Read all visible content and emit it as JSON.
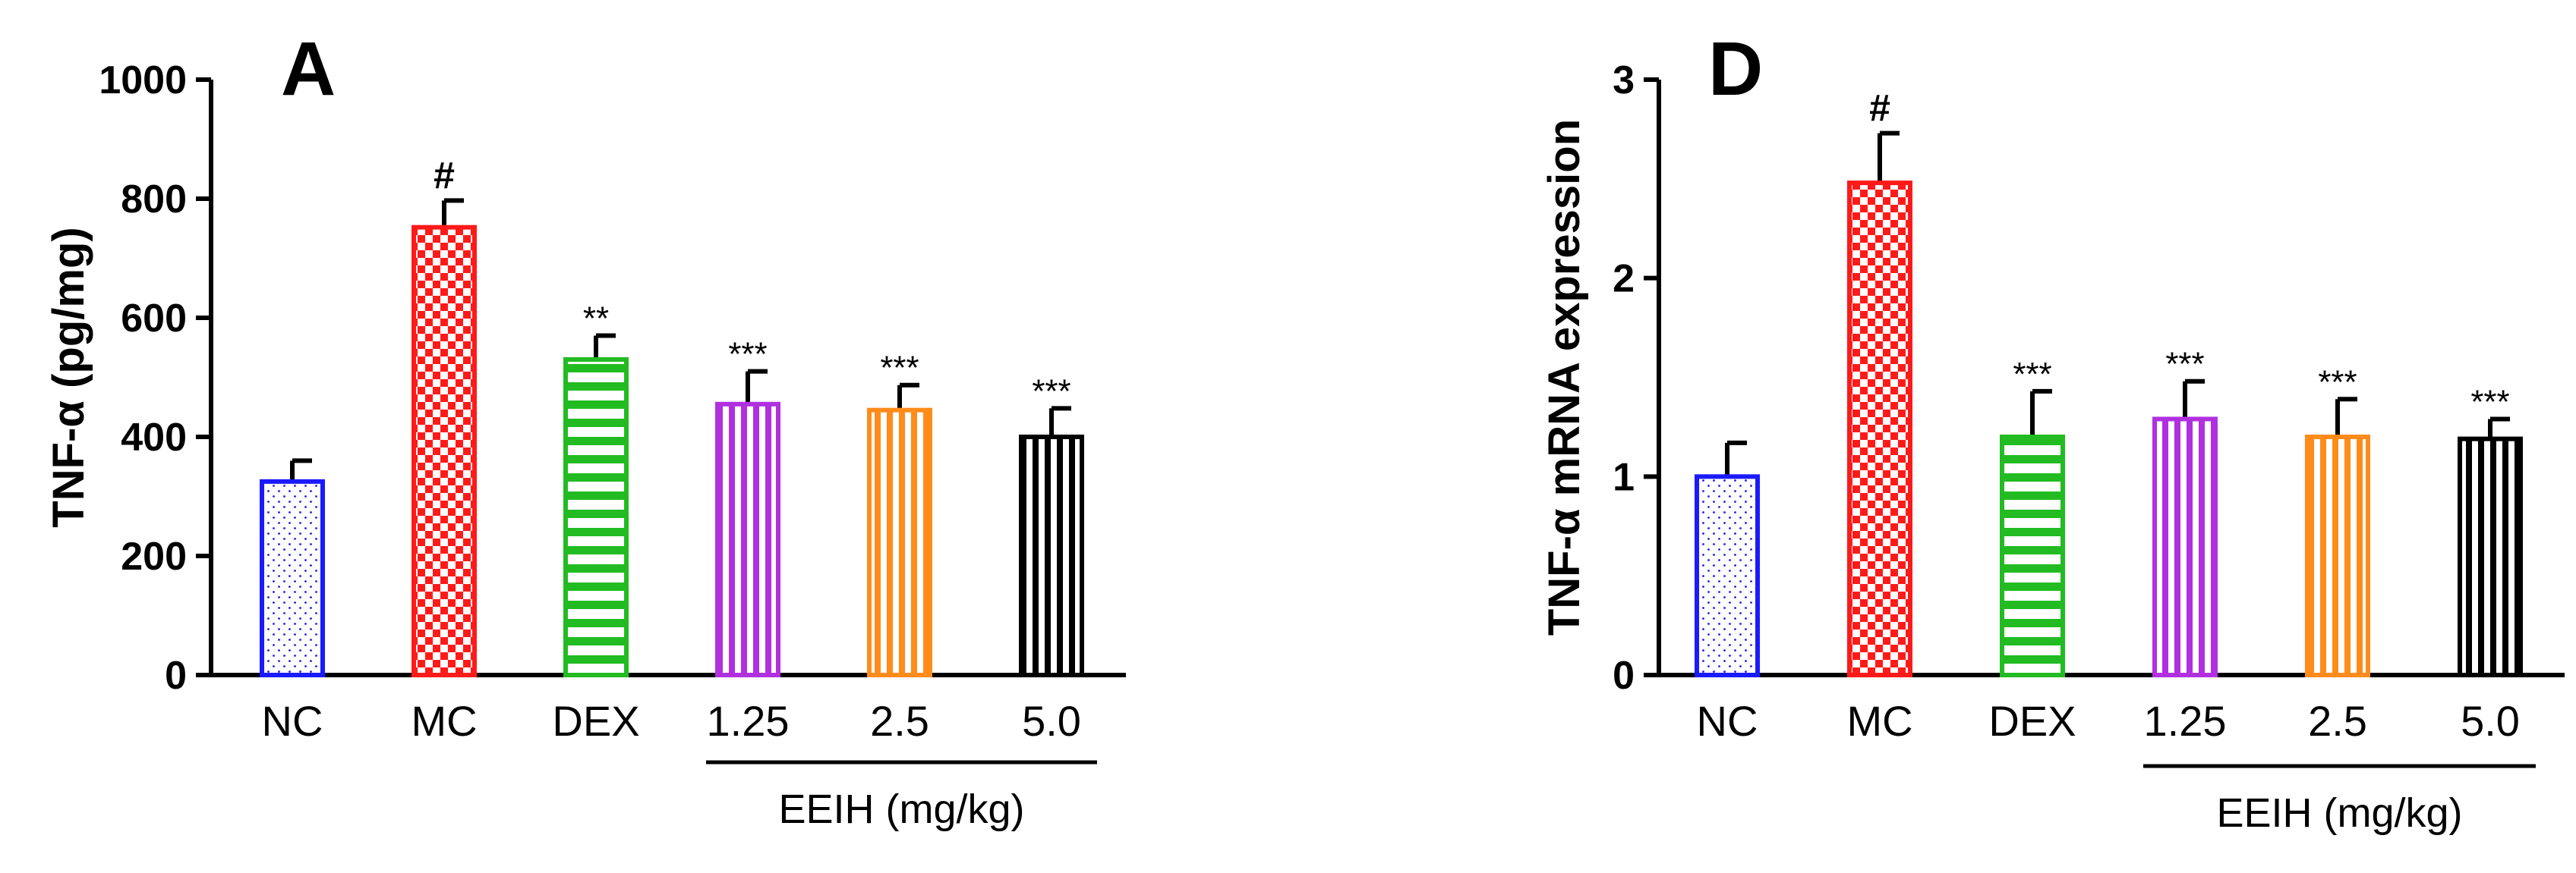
{
  "colors": {
    "NC": "#1a1aff",
    "MC": "#ff1a1a",
    "DEX": "#22bb22",
    "1.25": "#b030e0",
    "2.5": "#ff8c1a",
    "5.0": "#000000",
    "axis": "#000000"
  },
  "chart_data": [
    {
      "type": "bar",
      "panel_label": "A",
      "ylabel": "TNF-α (pg/mg)",
      "ylim": [
        0,
        1000
      ],
      "yticks": [
        "0",
        "200",
        "400",
        "600",
        "800",
        "1000"
      ],
      "categories": [
        "NC",
        "MC",
        "DEX",
        "1.25",
        "2.5",
        "5.0"
      ],
      "values": [
        325,
        752,
        530,
        455,
        445,
        400
      ],
      "errors": [
        35,
        45,
        40,
        55,
        42,
        48
      ],
      "annotations": [
        "",
        "#",
        "**",
        "***",
        "***",
        "***"
      ],
      "group_label": "EEIH (mg/kg)",
      "patterns": [
        "dots",
        "checker",
        "hstripe",
        "vstripe",
        "vstripe",
        "vstripe"
      ]
    },
    {
      "type": "bar",
      "panel_label": "D",
      "ylabel": "TNF-α mRNA expression",
      "ylim": [
        0,
        3
      ],
      "yticks": [
        "0",
        "1",
        "2",
        "3"
      ],
      "categories": [
        "NC",
        "MC",
        "DEX",
        "1.25",
        "2.5",
        "5.0"
      ],
      "values": [
        1.0,
        2.48,
        1.2,
        1.29,
        1.2,
        1.19
      ],
      "errors": [
        0.17,
        0.25,
        0.23,
        0.19,
        0.19,
        0.1
      ],
      "annotations": [
        "",
        "#",
        "***",
        "***",
        "***",
        "***"
      ],
      "group_label": "EEIH (mg/kg)",
      "patterns": [
        "dots",
        "checker",
        "hstripe",
        "vstripe",
        "vstripe",
        "vstripe"
      ]
    }
  ]
}
